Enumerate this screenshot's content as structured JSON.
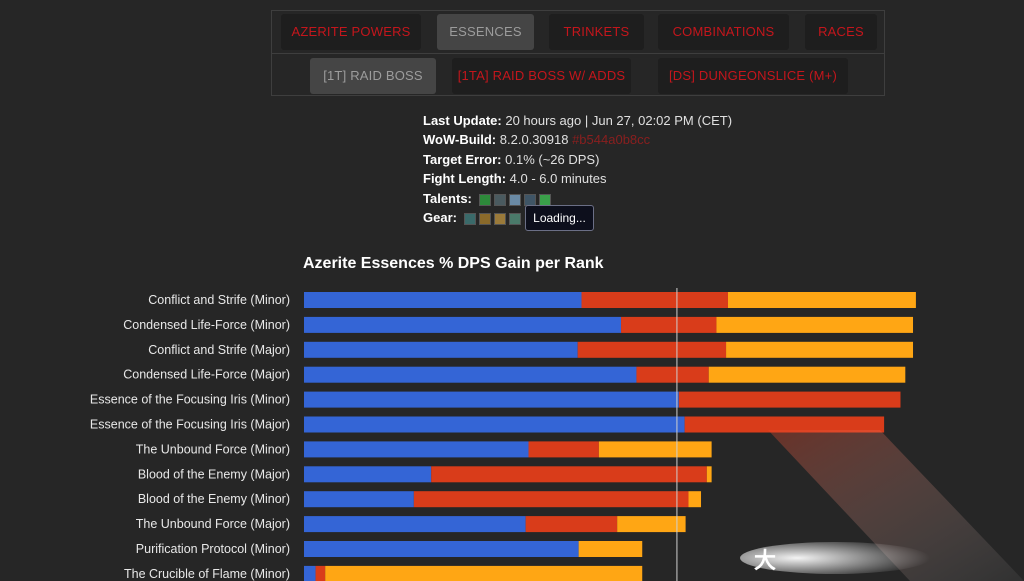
{
  "nav": {
    "row1": [
      {
        "label": "AZERITE POWERS",
        "active": false
      },
      {
        "label": "ESSENCES",
        "active": true
      },
      {
        "label": "TRINKETS",
        "active": false
      },
      {
        "label": "COMBINATIONS",
        "active": false
      },
      {
        "label": "RACES",
        "active": false
      }
    ],
    "row2": [
      {
        "label": "[1T] RAID BOSS",
        "active": true
      },
      {
        "label": "[1TA] RAID BOSS W/ ADDS",
        "active": false
      },
      {
        "label": "[DS] DUNGEONSLICE (M+)",
        "active": false
      }
    ]
  },
  "info": {
    "last_update_label": "Last Update:",
    "last_update_value": "20 hours ago | Jun 27, 02:02 PM (CET)",
    "wow_build_label": "WoW-Build:",
    "wow_build_value": "8.2.0.30918",
    "wow_build_hash": "#b544a0b8cc",
    "target_error_label": "Target Error:",
    "target_error_value": "0.1% (~26 DPS)",
    "fight_length_label": "Fight Length:",
    "fight_length_value": "4.0 - 6.0 minutes",
    "talents_label": "Talents:",
    "gear_label": "Gear:",
    "tooltip": "Loading..."
  },
  "colors": {
    "rank1": "#3465d6",
    "rank2": "#d93c1a",
    "rank3": "#ffa614"
  },
  "chart_data": {
    "type": "bar",
    "orientation": "horizontal",
    "stacked": true,
    "title": "Azerite Essences % DPS Gain per Rank",
    "categories": [
      "Conflict and Strife (Minor)",
      "Condensed Life-Force (Minor)",
      "Conflict and Strife (Major)",
      "Condensed Life-Force (Major)",
      "Essence of the Focusing Iris (Minor)",
      "Essence of the Focusing Iris (Major)",
      "The Unbound Force (Minor)",
      "Blood of the Enemy (Major)",
      "Blood of the Enemy (Minor)",
      "The Unbound Force (Major)",
      "Purification Protocol (Minor)",
      "The Crucible of Flame (Minor)"
    ],
    "series": [
      {
        "values": [
          288,
          329,
          284,
          345,
          389,
          395,
          233,
          132,
          114,
          230,
          285,
          12
        ]
      },
      {
        "values": [
          152,
          99,
          154,
          75,
          230,
          207,
          73,
          286,
          285,
          95,
          0,
          10
        ]
      },
      {
        "values": [
          195,
          204,
          194,
          204,
          0,
          0,
          117,
          5,
          13,
          71,
          66,
          329
        ]
      }
    ],
    "xlim": [
      0,
      660
    ],
    "reference_line": 387
  }
}
